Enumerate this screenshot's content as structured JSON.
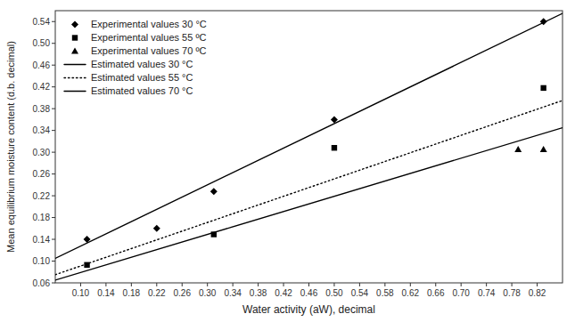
{
  "chart_data": {
    "type": "line",
    "xlabel": "Water activity (aW), decimal",
    "ylabel": "Mean equilibrium moisture content (d.b. decimal)",
    "xlim": [
      0.06,
      0.86
    ],
    "ylim": [
      0.06,
      0.56
    ],
    "xticks": [
      {
        "value": 0.1,
        "label": "0.10"
      },
      0.14,
      0.18,
      0.22,
      0.26,
      {
        "value": 0.3,
        "label": "0.30"
      },
      0.34,
      0.38,
      0.42,
      0.46,
      {
        "value": 0.5,
        "label": "0.50"
      },
      0.54,
      0.58,
      0.62,
      0.66,
      {
        "value": 0.7,
        "label": "0.70"
      },
      0.74,
      0.78,
      0.82
    ],
    "yticks": [
      0.06,
      {
        "value": 0.1,
        "label": "0.10"
      },
      0.14,
      0.18,
      0.22,
      0.26,
      {
        "value": 0.3,
        "label": "0.30"
      },
      0.34,
      0.38,
      0.42,
      0.46,
      {
        "value": 0.5,
        "label": "0.50"
      },
      0.54
    ],
    "grid": false,
    "legend": "upper left",
    "series": [
      {
        "name": "Experimental values 30 °C",
        "type": "scatter",
        "marker": "diamond",
        "color": "#000000",
        "x": [
          0.11,
          0.22,
          0.31,
          0.5,
          0.83
        ],
        "values": [
          0.14,
          0.16,
          0.228,
          0.36,
          0.54
        ]
      },
      {
        "name": "Experimental values 55 ºC",
        "type": "scatter",
        "marker": "square",
        "color": "#000000",
        "x": [
          0.11,
          0.31,
          0.5,
          0.83
        ],
        "values": [
          0.093,
          0.149,
          0.308,
          0.418
        ]
      },
      {
        "name": "Experimental values 70 ºC",
        "type": "scatter",
        "marker": "triangle",
        "color": "#000000",
        "x": [
          0.79,
          0.83
        ],
        "values": [
          0.305,
          0.305
        ]
      },
      {
        "name": "Estimated values 30 °C",
        "type": "line",
        "line_style": "solid",
        "color": "#000000",
        "x": [
          0.06,
          0.86
        ],
        "values": [
          0.105,
          0.555
        ]
      },
      {
        "name": "Estimated values 55 °C",
        "type": "line",
        "line_style": "dotted",
        "color": "#000000",
        "x": [
          0.06,
          0.86
        ],
        "values": [
          0.075,
          0.395
        ]
      },
      {
        "name": "Estimated values 70 °C",
        "type": "line",
        "line_style": "solid",
        "color": "#000000",
        "x": [
          0.06,
          0.86
        ],
        "values": [
          0.065,
          0.345
        ]
      }
    ]
  }
}
